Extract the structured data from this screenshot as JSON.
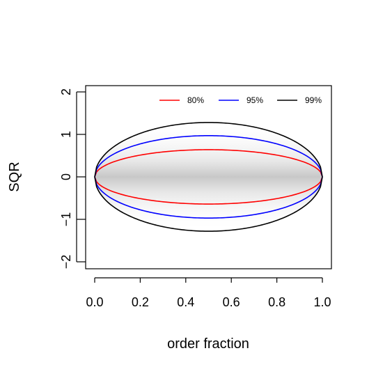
{
  "chart_data": {
    "type": "line",
    "xlabel": "order fraction",
    "ylabel": "SQR",
    "xlim": [
      0,
      1
    ],
    "ylim": [
      -2,
      2
    ],
    "x_ticks": [
      "0.0",
      "0.2",
      "0.4",
      "0.6",
      "0.8",
      "1.0"
    ],
    "y_ticks": [
      "−2",
      "−1",
      "0",
      "1",
      "2"
    ],
    "x_tick_values": [
      0,
      0.2,
      0.4,
      0.6,
      0.8,
      1.0
    ],
    "y_tick_values": [
      -2,
      -1,
      0,
      1,
      2
    ],
    "legend_placement": "top-right",
    "grid": false,
    "series": [
      {
        "name": "80%",
        "color": "#ff0000",
        "peak": 0.64,
        "peak_x": 0.5
      },
      {
        "name": "95%",
        "color": "#0000ff",
        "peak": 0.97,
        "peak_x": 0.5
      },
      {
        "name": "99%",
        "color": "#000000",
        "peak": 1.28,
        "peak_x": 0.5
      }
    ],
    "shaded_band": {
      "color": "#c8c8c8",
      "description_peak": 1.28
    }
  }
}
